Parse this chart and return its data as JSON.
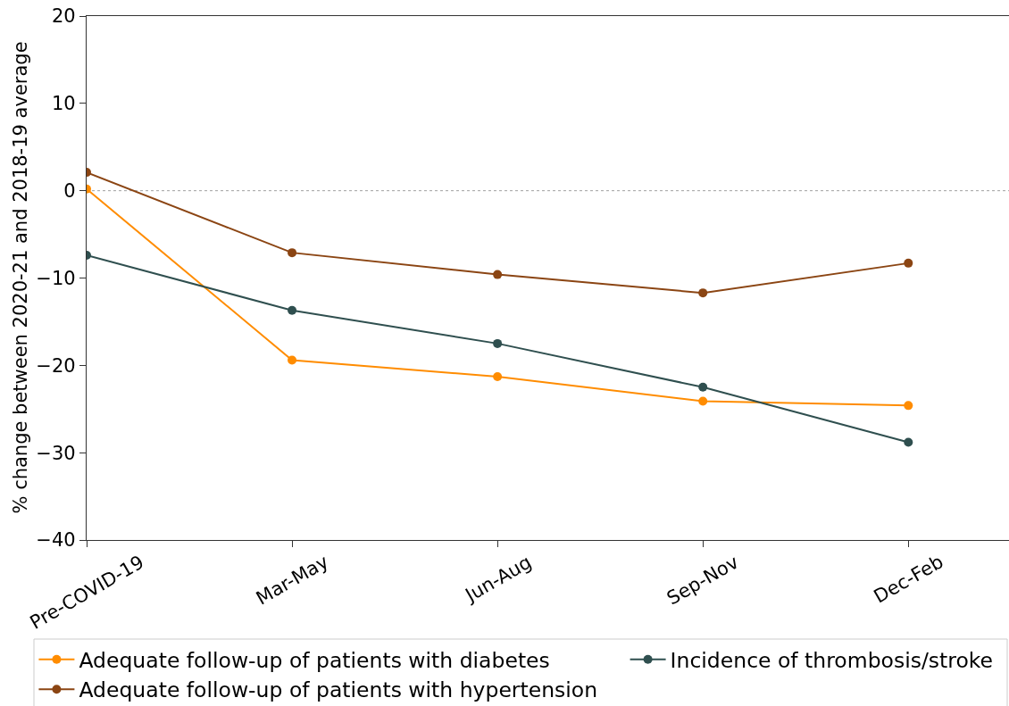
{
  "chart_data": {
    "type": "line",
    "ylabel": "% change between 2020-21 and 2018-19 average",
    "categories": [
      "Pre-COVID-19",
      "Mar-May",
      "Jun-Aug",
      "Sep-Nov",
      "Dec-Feb"
    ],
    "series": [
      {
        "name": "Adequate follow-up of patients with diabetes",
        "color": "#ff8c00",
        "values": [
          0.2,
          -19.4,
          -21.3,
          -24.1,
          -24.6
        ]
      },
      {
        "name": "Adequate follow-up of patients with hypertension",
        "color": "#8b4513",
        "values": [
          2.1,
          -7.1,
          -9.6,
          -11.7,
          -8.3
        ]
      },
      {
        "name": "Incidence of thrombosis/stroke",
        "color": "#2f4f4f",
        "values": [
          -7.4,
          -13.7,
          -17.5,
          -22.5,
          -28.8
        ]
      }
    ],
    "ylim": [
      -40,
      20
    ],
    "yticks": [
      {
        "value": -40,
        "label": "−40"
      },
      {
        "value": -30,
        "label": "−30"
      },
      {
        "value": -20,
        "label": "−20"
      },
      {
        "value": -10,
        "label": "−10"
      },
      0,
      10,
      20
    ],
    "ref_lines": [
      {
        "axis": "y",
        "value": 0,
        "color": "#a0a0a0",
        "line_style": "dotted"
      }
    ],
    "grid": false,
    "legend": "bottom",
    "marker": "circle",
    "line_style": "solid"
  }
}
